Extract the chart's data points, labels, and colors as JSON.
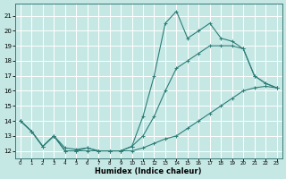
{
  "xlabel": "Humidex (Indice chaleur)",
  "xlim": [
    -0.5,
    23.5
  ],
  "ylim": [
    11.5,
    21.8
  ],
  "yticks": [
    12,
    13,
    14,
    15,
    16,
    17,
    18,
    19,
    20,
    21
  ],
  "xticks": [
    0,
    1,
    2,
    3,
    4,
    5,
    6,
    7,
    8,
    9,
    10,
    11,
    12,
    13,
    14,
    15,
    16,
    17,
    18,
    19,
    20,
    21,
    22,
    23
  ],
  "background_color": "#c5e8e5",
  "grid_color": "#ffffff",
  "line_color": "#2d7d78",
  "series": {
    "max": {
      "x": [
        0,
        1,
        2,
        3,
        4,
        5,
        6,
        7,
        8,
        9,
        10,
        11,
        12,
        13,
        14,
        15,
        16,
        17,
        18,
        19,
        20,
        21,
        22,
        23
      ],
      "y": [
        14.0,
        13.3,
        12.3,
        13.0,
        12.0,
        12.0,
        12.2,
        12.0,
        12.0,
        12.0,
        12.3,
        14.3,
        17.0,
        20.5,
        21.3,
        19.5,
        20.0,
        20.5,
        19.5,
        19.3,
        18.8,
        17.0,
        16.5,
        16.2
      ]
    },
    "mean": {
      "x": [
        0,
        1,
        2,
        3,
        4,
        5,
        6,
        7,
        8,
        9,
        10,
        11,
        12,
        13,
        14,
        15,
        16,
        17,
        18,
        19,
        20,
        21,
        22,
        23
      ],
      "y": [
        14.0,
        13.3,
        12.3,
        13.0,
        12.2,
        12.1,
        12.2,
        12.0,
        12.0,
        12.0,
        12.3,
        13.0,
        14.3,
        16.0,
        17.5,
        18.0,
        18.5,
        19.0,
        19.0,
        19.0,
        18.8,
        17.0,
        16.5,
        16.2
      ]
    },
    "min": {
      "x": [
        0,
        1,
        2,
        3,
        4,
        5,
        6,
        7,
        8,
        9,
        10,
        11,
        12,
        13,
        14,
        15,
        16,
        17,
        18,
        19,
        20,
        21,
        22,
        23
      ],
      "y": [
        14.0,
        13.3,
        12.3,
        13.0,
        12.0,
        12.0,
        12.0,
        12.0,
        12.0,
        12.0,
        12.0,
        12.2,
        12.5,
        12.8,
        13.0,
        13.5,
        14.0,
        14.5,
        15.0,
        15.5,
        16.0,
        16.2,
        16.3,
        16.2
      ]
    }
  }
}
